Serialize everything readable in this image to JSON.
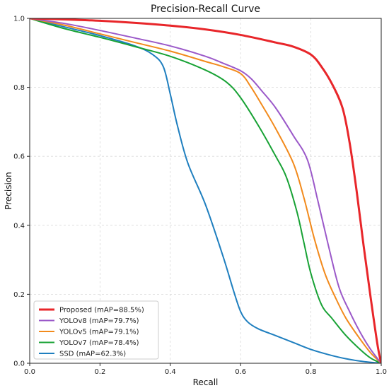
{
  "chart_data": {
    "type": "line",
    "title": "Precision-Recall Curve",
    "xlabel": "Recall",
    "ylabel": "Precision",
    "xlim": [
      0,
      1
    ],
    "ylim": [
      0,
      1
    ],
    "x_ticks": [
      "0.0",
      "0.2",
      "0.4",
      "0.6",
      "0.8",
      "1.0"
    ],
    "y_ticks": [
      "0.0",
      "0.2",
      "0.4",
      "0.6",
      "0.8",
      "1.0"
    ],
    "grid": true,
    "legend_position": "bottom-left",
    "series": [
      {
        "name": "Proposed (mAP=88.5%)",
        "color": "#e8262a",
        "x": [
          0.0,
          0.1,
          0.2,
          0.3,
          0.4,
          0.5,
          0.6,
          0.7,
          0.75,
          0.8,
          0.83,
          0.86,
          0.89,
          0.91,
          0.93,
          0.95,
          0.97,
          0.99,
          1.0
        ],
        "y": [
          1.0,
          0.997,
          0.993,
          0.987,
          0.979,
          0.968,
          0.952,
          0.93,
          0.918,
          0.895,
          0.86,
          0.81,
          0.74,
          0.64,
          0.5,
          0.34,
          0.19,
          0.05,
          0.0
        ]
      },
      {
        "name": "YOLOv8 (mAP=79.7%)",
        "color": "#9b59c9",
        "x": [
          0.0,
          0.1,
          0.2,
          0.3,
          0.4,
          0.5,
          0.55,
          0.6,
          0.63,
          0.66,
          0.7,
          0.75,
          0.79,
          0.82,
          0.85,
          0.88,
          0.91,
          0.94,
          0.97,
          1.0
        ],
        "y": [
          1.0,
          0.985,
          0.965,
          0.943,
          0.92,
          0.89,
          0.87,
          0.848,
          0.825,
          0.79,
          0.74,
          0.66,
          0.59,
          0.47,
          0.34,
          0.22,
          0.15,
          0.09,
          0.04,
          0.0
        ]
      },
      {
        "name": "YOLOv5 (mAP=79.1%)",
        "color": "#f28a1c",
        "x": [
          0.0,
          0.1,
          0.2,
          0.3,
          0.4,
          0.5,
          0.55,
          0.6,
          0.63,
          0.66,
          0.7,
          0.75,
          0.78,
          0.81,
          0.84,
          0.87,
          0.9,
          0.94,
          0.97,
          1.0
        ],
        "y": [
          1.0,
          0.98,
          0.955,
          0.93,
          0.905,
          0.875,
          0.86,
          0.84,
          0.8,
          0.75,
          0.68,
          0.58,
          0.48,
          0.36,
          0.26,
          0.19,
          0.13,
          0.07,
          0.03,
          0.0
        ]
      },
      {
        "name": "YOLOv7 (mAP=78.4%)",
        "color": "#18a235",
        "x": [
          0.0,
          0.1,
          0.2,
          0.3,
          0.4,
          0.5,
          0.56,
          0.6,
          0.65,
          0.7,
          0.73,
          0.76,
          0.78,
          0.8,
          0.83,
          0.86,
          0.9,
          0.94,
          0.97,
          1.0
        ],
        "y": [
          1.0,
          0.97,
          0.945,
          0.918,
          0.89,
          0.85,
          0.815,
          0.77,
          0.69,
          0.6,
          0.54,
          0.44,
          0.35,
          0.26,
          0.17,
          0.13,
          0.08,
          0.04,
          0.015,
          0.0
        ]
      },
      {
        "name": "SSD (mAP=62.3%)",
        "color": "#1f7fbf",
        "x": [
          0.0,
          0.1,
          0.2,
          0.3,
          0.35,
          0.38,
          0.4,
          0.42,
          0.45,
          0.5,
          0.55,
          0.58,
          0.6,
          0.62,
          0.65,
          0.7,
          0.75,
          0.8,
          0.85,
          0.9,
          0.95,
          1.0
        ],
        "y": [
          1.0,
          0.975,
          0.95,
          0.92,
          0.895,
          0.86,
          0.78,
          0.69,
          0.58,
          0.46,
          0.31,
          0.21,
          0.15,
          0.12,
          0.1,
          0.08,
          0.06,
          0.04,
          0.025,
          0.013,
          0.005,
          0.0
        ]
      }
    ]
  }
}
